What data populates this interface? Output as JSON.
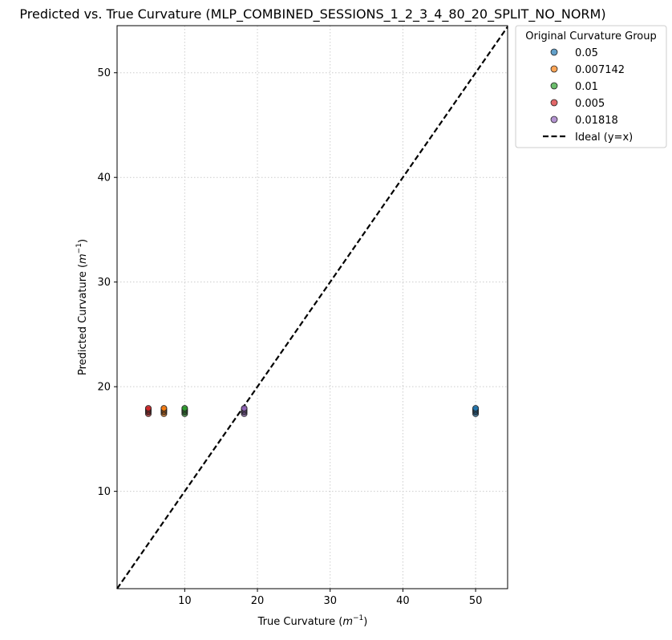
{
  "chart_data": {
    "type": "scatter",
    "title": "Predicted vs. True Curvature (MLP_COMBINED_SESSIONS_1_2_3_4_80_20_SPLIT_NO_NORM)",
    "xlabel_main": "True Curvature (",
    "xlabel_sup_base": "m",
    "xlabel_sup": "−1",
    "xlabel_close": ")",
    "ylabel_main": "Predicted Curvature (",
    "ylabel_sup_base": "m",
    "ylabel_sup": "−1",
    "ylabel_close": ")",
    "xlim": [
      0.7,
      54.4
    ],
    "ylim": [
      0.7,
      54.5
    ],
    "xticks": [
      10,
      20,
      30,
      40,
      50
    ],
    "yticks": [
      10,
      20,
      30,
      40,
      50
    ],
    "grid": true,
    "legend": {
      "title": "Original Curvature Group",
      "placement": "outside upper right",
      "ideal_label": "Ideal (y=x)"
    },
    "ideal_line": {
      "from": [
        0.7,
        0.7
      ],
      "to": [
        54.4,
        54.4
      ],
      "color": "#000000",
      "style": "dashed"
    },
    "series": [
      {
        "name": "0.05",
        "color": "#1f77b4",
        "x": [
          50,
          50,
          50,
          50,
          50,
          50
        ],
        "y": [
          17.4,
          17.55,
          17.65,
          17.75,
          17.85,
          17.95
        ]
      },
      {
        "name": "0.007142",
        "color": "#ff7f0e",
        "x": [
          7.14,
          7.14,
          7.14,
          7.14,
          7.14,
          7.14
        ],
        "y": [
          17.4,
          17.55,
          17.65,
          17.75,
          17.85,
          17.95
        ]
      },
      {
        "name": "0.01",
        "color": "#2ca02c",
        "x": [
          10,
          10,
          10,
          10,
          10,
          10
        ],
        "y": [
          17.4,
          17.55,
          17.65,
          17.75,
          17.85,
          17.95
        ]
      },
      {
        "name": "0.005",
        "color": "#d62728",
        "x": [
          5,
          5,
          5,
          5,
          5,
          5
        ],
        "y": [
          17.4,
          17.55,
          17.65,
          17.75,
          17.85,
          17.95
        ]
      },
      {
        "name": "0.01818",
        "color": "#9467bd",
        "x": [
          18.18,
          18.18,
          18.18,
          18.18,
          18.18,
          18.18
        ],
        "y": [
          17.4,
          17.55,
          17.65,
          17.75,
          17.85,
          17.95
        ]
      }
    ]
  }
}
